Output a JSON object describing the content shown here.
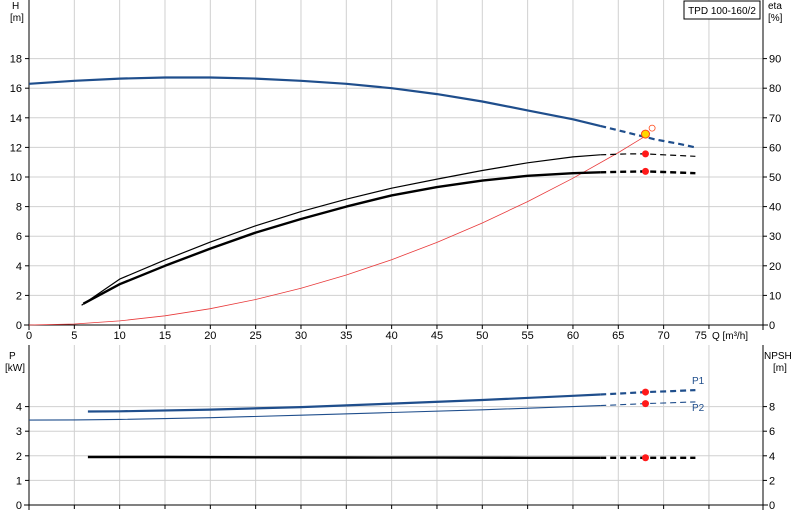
{
  "chart_data": [
    {
      "type": "line",
      "title": "TPD 100-160/2",
      "xlabel": "Q [m³/h]",
      "ylabel_left": "H [m]",
      "ylabel_right": "eta [%]",
      "xlim": [
        0,
        75
      ],
      "ylim_left": [
        0,
        20
      ],
      "ylim_right": [
        0,
        100
      ],
      "xticks": [
        0,
        5,
        10,
        15,
        20,
        25,
        30,
        35,
        40,
        45,
        50,
        55,
        60,
        65,
        70,
        75
      ],
      "yticks_left": [
        0,
        2,
        4,
        6,
        8,
        10,
        12,
        14,
        16,
        18
      ],
      "yticks_right": [
        0,
        10,
        20,
        30,
        40,
        50,
        60,
        70,
        80,
        90
      ],
      "grid": true,
      "series": [
        {
          "role": "H",
          "axis": "left",
          "color": "#1f4e8c",
          "solid_x": [
            0,
            5,
            10,
            15,
            20,
            25,
            30,
            35,
            40,
            45,
            50,
            55,
            60,
            63
          ],
          "solid_y": [
            16.3,
            16.5,
            16.65,
            16.72,
            16.72,
            16.65,
            16.5,
            16.3,
            16.0,
            15.6,
            15.1,
            14.5,
            13.9,
            13.45
          ],
          "dashed_x": [
            63,
            66,
            69,
            72,
            73.5
          ],
          "dashed_y": [
            13.45,
            13.0,
            12.55,
            12.2,
            12.0
          ],
          "duty_point": [
            68,
            12.9
          ]
        },
        {
          "role": "eta",
          "axis": "right",
          "color": "#000000",
          "solid_x": [
            5.8,
            10,
            15,
            20,
            25,
            30,
            35,
            40,
            45,
            50,
            55,
            60,
            63
          ],
          "solid_y": [
            6.7,
            15.5,
            22.0,
            28.0,
            33.5,
            38.3,
            42.5,
            46.2,
            49.3,
            52.2,
            54.8,
            56.8,
            57.5
          ],
          "dashed_x": [
            63,
            66,
            68,
            70,
            73.5
          ],
          "dashed_y": [
            57.5,
            57.8,
            57.8,
            57.5,
            57.0
          ],
          "duty_point": [
            68,
            57.8
          ]
        },
        {
          "role": "eta-thick",
          "axis": "right",
          "color": "#000000",
          "solid_x": [
            6.0,
            10,
            15,
            20,
            25,
            30,
            35,
            40,
            45,
            50,
            55,
            60,
            63
          ],
          "solid_y": [
            7.2,
            13.8,
            20.0,
            25.8,
            31.2,
            35.8,
            40.0,
            43.8,
            46.6,
            48.8,
            50.4,
            51.3,
            51.6
          ],
          "dashed_x": [
            63,
            66,
            68,
            70,
            73.5
          ],
          "dashed_y": [
            51.6,
            51.8,
            51.9,
            51.7,
            51.3
          ],
          "duty_point": [
            68,
            51.9
          ]
        },
        {
          "role": "system-curve",
          "axis": "left",
          "color": "#e8393a",
          "x": [
            0,
            5,
            10,
            15,
            20,
            25,
            30,
            35,
            40,
            45,
            50,
            55,
            60,
            65,
            68.5
          ],
          "y": [
            0,
            0.07,
            0.28,
            0.62,
            1.1,
            1.72,
            2.48,
            3.38,
            4.41,
            5.58,
            6.89,
            8.34,
            9.92,
            11.65,
            12.95
          ]
        }
      ]
    },
    {
      "type": "line",
      "xlabel": "",
      "ylabel_left": "P [kW]",
      "ylabel_right": "NPSH [m]",
      "xlim": [
        0,
        75
      ],
      "ylim_left": [
        0,
        5
      ],
      "ylim_right": [
        0,
        10
      ],
      "yticks_left": [
        0,
        1,
        2,
        3,
        4
      ],
      "yticks_right": [
        0,
        2,
        4,
        6,
        8
      ],
      "grid": true,
      "series": [
        {
          "name": "P1",
          "axis": "left",
          "color": "#1f4e8c",
          "solid_x": [
            6.5,
            10,
            20,
            30,
            40,
            50,
            60,
            63
          ],
          "solid_y": [
            3.8,
            3.81,
            3.88,
            3.98,
            4.12,
            4.27,
            4.44,
            4.49
          ],
          "dashed_x": [
            63,
            66,
            68,
            71,
            73.5
          ],
          "dashed_y": [
            4.49,
            4.55,
            4.59,
            4.63,
            4.67
          ],
          "duty_point": [
            68,
            4.59
          ]
        },
        {
          "name": "P2",
          "axis": "left",
          "color": "#1f4e8c",
          "solid_x": [
            0,
            5,
            10,
            20,
            30,
            40,
            50,
            60,
            63
          ],
          "solid_y": [
            3.45,
            3.46,
            3.48,
            3.55,
            3.65,
            3.76,
            3.87,
            4.0,
            4.04
          ],
          "dashed_x": [
            63,
            66,
            68,
            71,
            73.5
          ],
          "dashed_y": [
            4.04,
            4.09,
            4.12,
            4.16,
            4.19
          ],
          "duty_point": [
            68,
            4.12
          ]
        },
        {
          "role": "NPSH",
          "axis": "right",
          "color": "#000000",
          "solid_x": [
            6.5,
            15,
            25,
            35,
            45,
            55,
            63
          ],
          "solid_y": [
            3.9,
            3.9,
            3.88,
            3.86,
            3.85,
            3.84,
            3.84
          ],
          "dashed_x": [
            63,
            66,
            68,
            71,
            73.5
          ],
          "dashed_y": [
            3.84,
            3.84,
            3.84,
            3.84,
            3.84
          ],
          "duty_point": [
            68,
            3.84
          ]
        }
      ]
    }
  ]
}
